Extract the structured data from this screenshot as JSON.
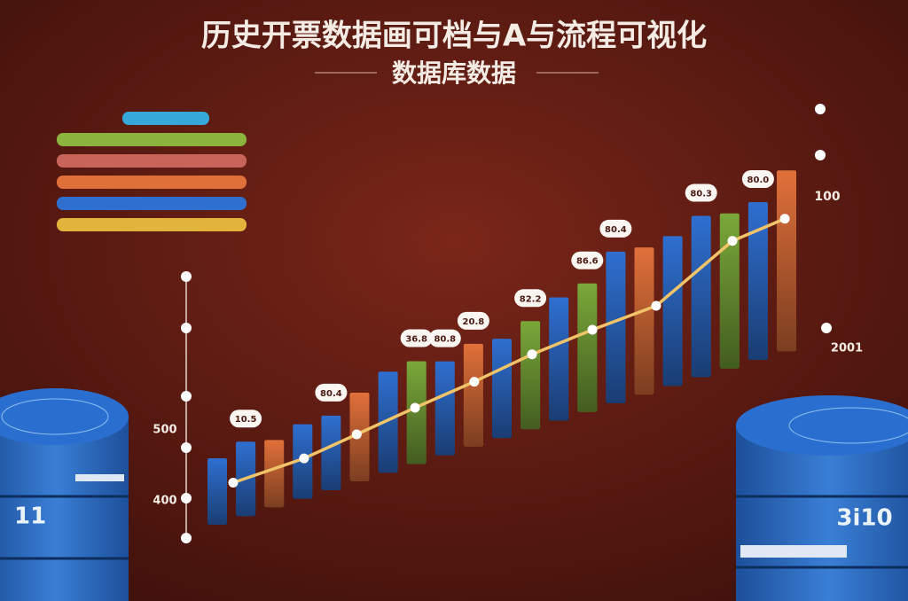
{
  "chart_data": {
    "type": "bar",
    "title": "历史开票数据画可档与A与流程可视化",
    "subtitle": "数据库数据",
    "ylim": [
      0,
      210
    ],
    "values": [
      75,
      84,
      76,
      84,
      84,
      100,
      114,
      116,
      106,
      116,
      112,
      122,
      139,
      145,
      171,
      166,
      169,
      182,
      175,
      178,
      204
    ],
    "colors": [
      "#2f6fd0",
      "#2f6fd0",
      "#e0703a",
      "#2f6fd0",
      "#2f6fd0",
      "#e0703a",
      "#2f6fd0",
      "#7aa83a",
      "#2f6fd0",
      "#e0703a",
      "#2f6fd0",
      "#7aa83a",
      "#2f6fd0",
      "#7aa83a",
      "#2f6fd0",
      "#e0703a",
      "#2f6fd0",
      "#2f6fd0",
      "#7aa83a",
      "#2f6fd0",
      "#e0703a"
    ],
    "callouts": [
      null,
      "10.5",
      null,
      null,
      "80.4",
      null,
      null,
      "36.8",
      "80.8",
      "20.8",
      null,
      "82.2",
      null,
      "86.6",
      "80.4",
      null,
      null,
      "80.3",
      null,
      "80.0",
      null
    ],
    "line": {
      "color": "#f2c46a",
      "x": [
        0.56,
        3.05,
        4.9,
        6.95,
        9.03,
        11.06,
        13.18,
        15.42,
        18.1,
        19.94
      ],
      "values": [
        42,
        45,
        54,
        64,
        73,
        84,
        91,
        96,
        143,
        150
      ]
    },
    "legend_colors": [
      "#36a9d8",
      "#8cb33e",
      "#c8645a",
      "#e0703a",
      "#2f6fd0",
      "#e2b43c"
    ],
    "side_labels": {
      "left_top": "500",
      "left_bottom": "400",
      "right_top": "100",
      "right_bottom": "2001"
    },
    "database_labels": [
      "11",
      "3i10"
    ]
  }
}
